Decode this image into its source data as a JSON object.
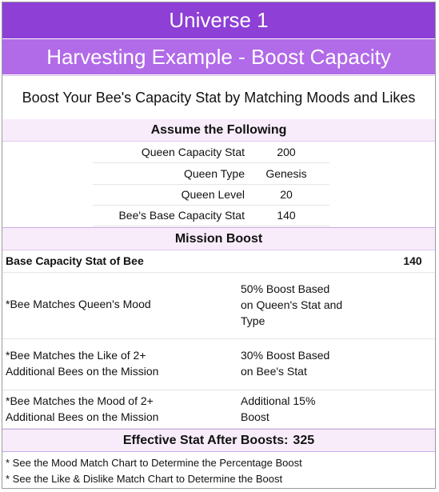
{
  "header": {
    "title": "Universe 1",
    "subtitle": "Harvesting Example - Boost Capacity"
  },
  "intro": "Boost Your Bee's Capacity Stat by Matching Moods and Likes",
  "assume": {
    "heading": "Assume the Following",
    "rows": [
      {
        "label": "Queen Capacity Stat",
        "value": "200"
      },
      {
        "label": "Queen Type",
        "value": "Genesis"
      },
      {
        "label": "Queen Level",
        "value": "20"
      },
      {
        "label": "Bee's Base Capacity Stat",
        "value": "140"
      }
    ]
  },
  "mission": {
    "heading": "Mission Boost",
    "base_label": "Base Capacity Stat of Bee",
    "base_value": "140",
    "rows": [
      {
        "label": "*Bee Matches Queen's Mood",
        "desc": "50% Boost Based on Queen's Stat and Type"
      },
      {
        "label": "*Bee Matches the Like of 2+ Additional Bees on the Mission",
        "desc": "30% Boost Based on Bee's Stat"
      },
      {
        "label": "*Bee Matches the Mood of 2+ Additional Bees on the Mission",
        "desc": "Additional 15% Boost"
      }
    ]
  },
  "effective": {
    "label": "Effective Stat After Boosts:",
    "value": "325"
  },
  "notes": [
    "* See the Mood Match Chart to Determine the Percentage Boost",
    "* See the Like & Dislike Match Chart to Determine the Boost"
  ],
  "colors": {
    "header_primary": "#8d3fd6",
    "header_secondary": "#b16ae8",
    "section_bg": "#f8ecfb"
  }
}
